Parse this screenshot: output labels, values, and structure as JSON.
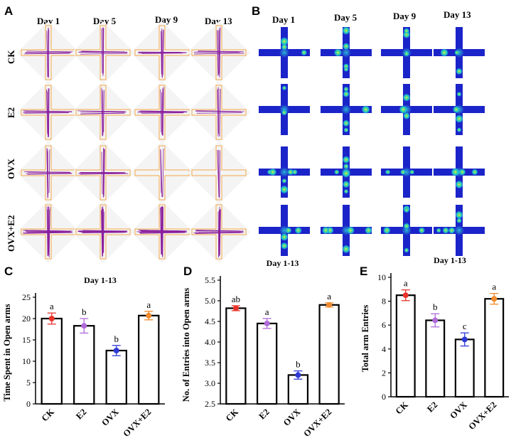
{
  "panels": {
    "A": "A",
    "B": "B",
    "C": "C",
    "D": "D",
    "E": "E"
  },
  "days": [
    "Day 1",
    "Day 5",
    "Day 9",
    "Day 13"
  ],
  "groups": [
    "CK",
    "E2",
    "OVX",
    "OVX+E2"
  ],
  "colors": {
    "track": "#8a1f9c",
    "arena": "#f3a94a",
    "heat_bg": "#1b24c8",
    "heat_mid": "#22b7d6",
    "dot_ck": "#e8332b",
    "dot_e2": "#b06ad9",
    "dot_ovx": "#2f3ad6",
    "dot_ovxe2": "#f08a2c"
  },
  "chart_data": [
    {
      "type": "bar",
      "title": "Day 1-13",
      "ylabel": "Time Spent in Open arms",
      "xlabel": "",
      "categories": [
        "CK",
        "E2",
        "OVX",
        "OVX+E2"
      ],
      "values": [
        20.0,
        18.3,
        12.5,
        20.7
      ],
      "errors": [
        1.3,
        1.7,
        1.2,
        1.0
      ],
      "letters": [
        "a",
        "b",
        "b",
        "a"
      ],
      "ylim": [
        0,
        25
      ],
      "ticks": [
        "0",
        "5",
        "10",
        "15",
        "20",
        "25"
      ]
    },
    {
      "type": "bar",
      "title": "Day 1-13",
      "ylabel": "No. of Entries into Open arms",
      "xlabel": "",
      "categories": [
        "CK",
        "E2",
        "OVX",
        "OVX+E2"
      ],
      "values": [
        4.82,
        4.45,
        3.2,
        4.9
      ],
      "errors": [
        0.06,
        0.12,
        0.1,
        0.05
      ],
      "letters": [
        "ab",
        "a",
        "b",
        "a"
      ],
      "ylim": [
        2.5,
        5.5
      ],
      "ticks": [
        "2.5",
        "3.0",
        "3.5",
        "4.0",
        "4.5",
        "5.0",
        "5.5"
      ]
    },
    {
      "type": "bar",
      "title": "Day 1-13",
      "ylabel": "Total arm Entries",
      "xlabel": "",
      "categories": [
        "CK",
        "E2",
        "OVX",
        "OVX+E2"
      ],
      "values": [
        8.5,
        6.4,
        4.8,
        8.2
      ],
      "errors": [
        0.45,
        0.55,
        0.55,
        0.45
      ],
      "letters": [
        "a",
        "b",
        "c",
        "a"
      ],
      "ylim": [
        0,
        10
      ],
      "ticks": [
        "0",
        "2",
        "4",
        "6",
        "8",
        "10"
      ]
    }
  ]
}
